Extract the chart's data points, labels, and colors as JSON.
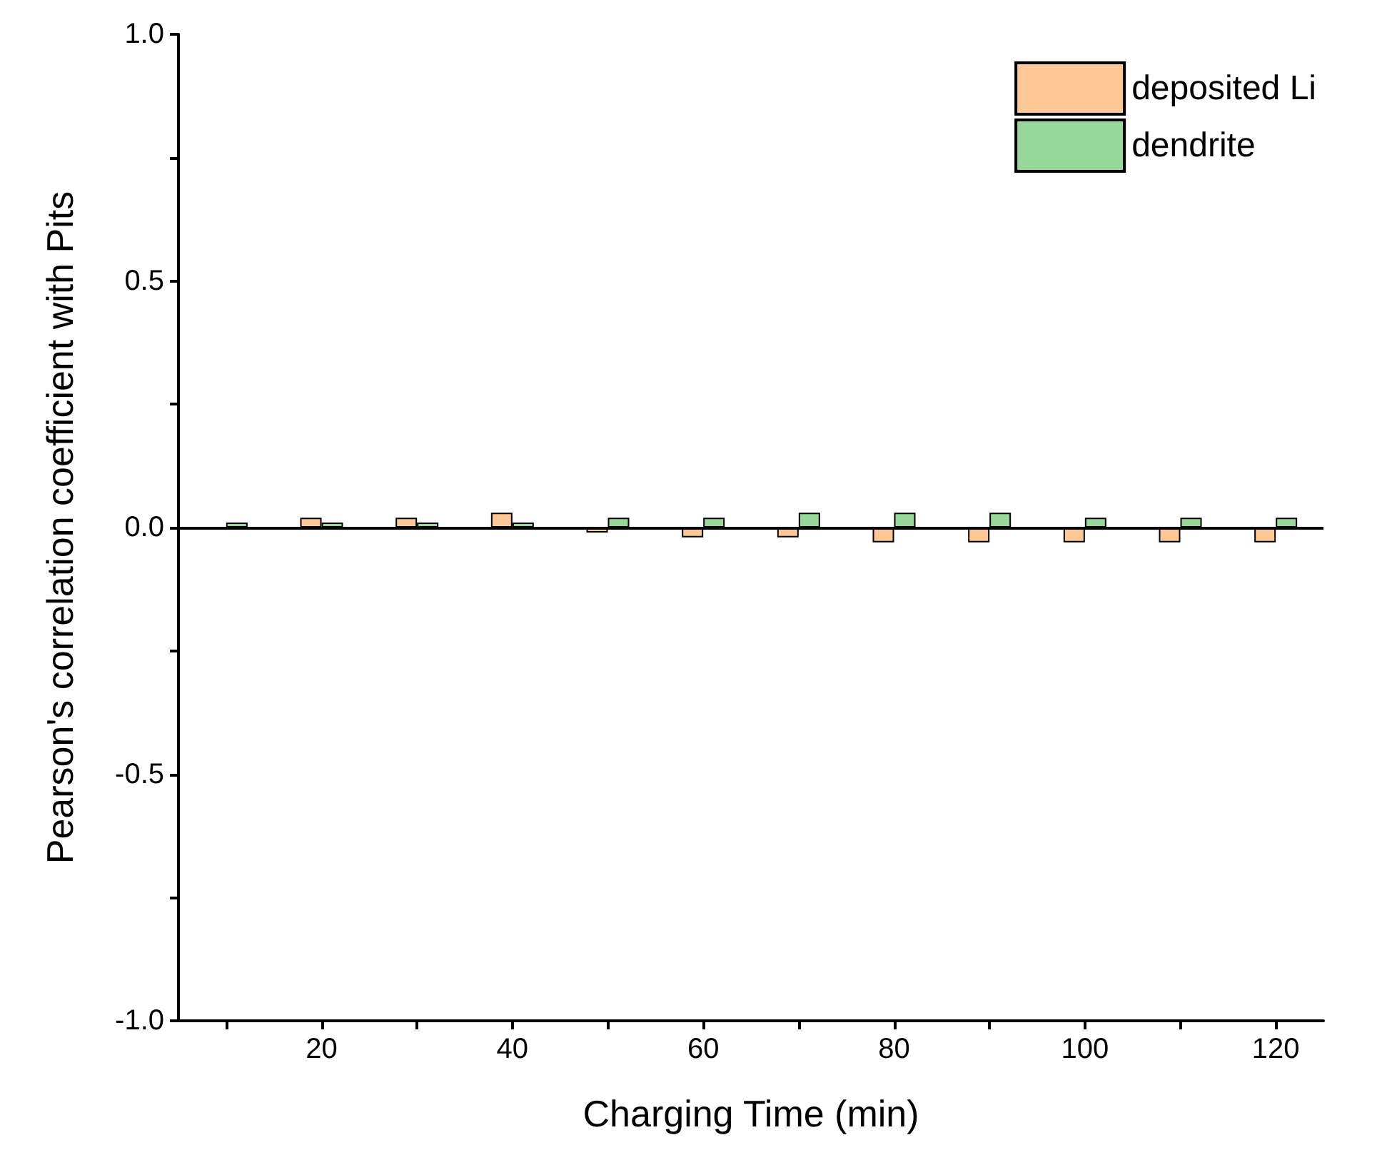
{
  "chart_data": {
    "type": "bar",
    "xlabel": "Charging Time (min)",
    "ylabel": "Pearson's correlation coefficient with Pits",
    "x": [
      10,
      20,
      30,
      40,
      50,
      60,
      70,
      80,
      90,
      100,
      110,
      120
    ],
    "series": [
      {
        "name": "deposited Li",
        "color": "#fdc896",
        "values": [
          null,
          0.02,
          0.02,
          0.03,
          -0.01,
          -0.02,
          -0.02,
          -0.03,
          -0.03,
          -0.03,
          -0.03,
          -0.03
        ]
      },
      {
        "name": "dendrite",
        "color": "#98d89a",
        "values": [
          0.01,
          0.01,
          0.01,
          0.01,
          0.02,
          0.02,
          0.03,
          0.03,
          0.03,
          0.02,
          0.02,
          0.02
        ]
      }
    ],
    "xlim": [
      5,
      125
    ],
    "xticks": [
      {
        "value": 10,
        "label": null
      },
      20,
      {
        "value": 30,
        "label": null
      },
      40,
      {
        "value": 50,
        "label": null
      },
      60,
      {
        "value": 70,
        "label": null
      },
      80,
      {
        "value": 90,
        "label": null
      },
      100,
      {
        "value": 110,
        "label": null
      },
      120
    ],
    "ylim": [
      -1,
      1
    ],
    "yticks": [
      {
        "value": -1,
        "label": "-1.0"
      },
      {
        "value": -0.75,
        "label": null
      },
      {
        "value": -0.5,
        "label": "-0.5"
      },
      {
        "value": -0.25,
        "label": null
      },
      {
        "value": 0,
        "label": "0.0"
      },
      {
        "value": 0.25,
        "label": null
      },
      {
        "value": 0.5,
        "label": "0.5"
      },
      {
        "value": 0.75,
        "label": null
      },
      {
        "value": 1,
        "label": "1.0"
      }
    ],
    "ref_lines": [
      {
        "axis": "y",
        "value": 0,
        "color": "#000000"
      }
    ],
    "legend": "top right",
    "grid": false
  }
}
